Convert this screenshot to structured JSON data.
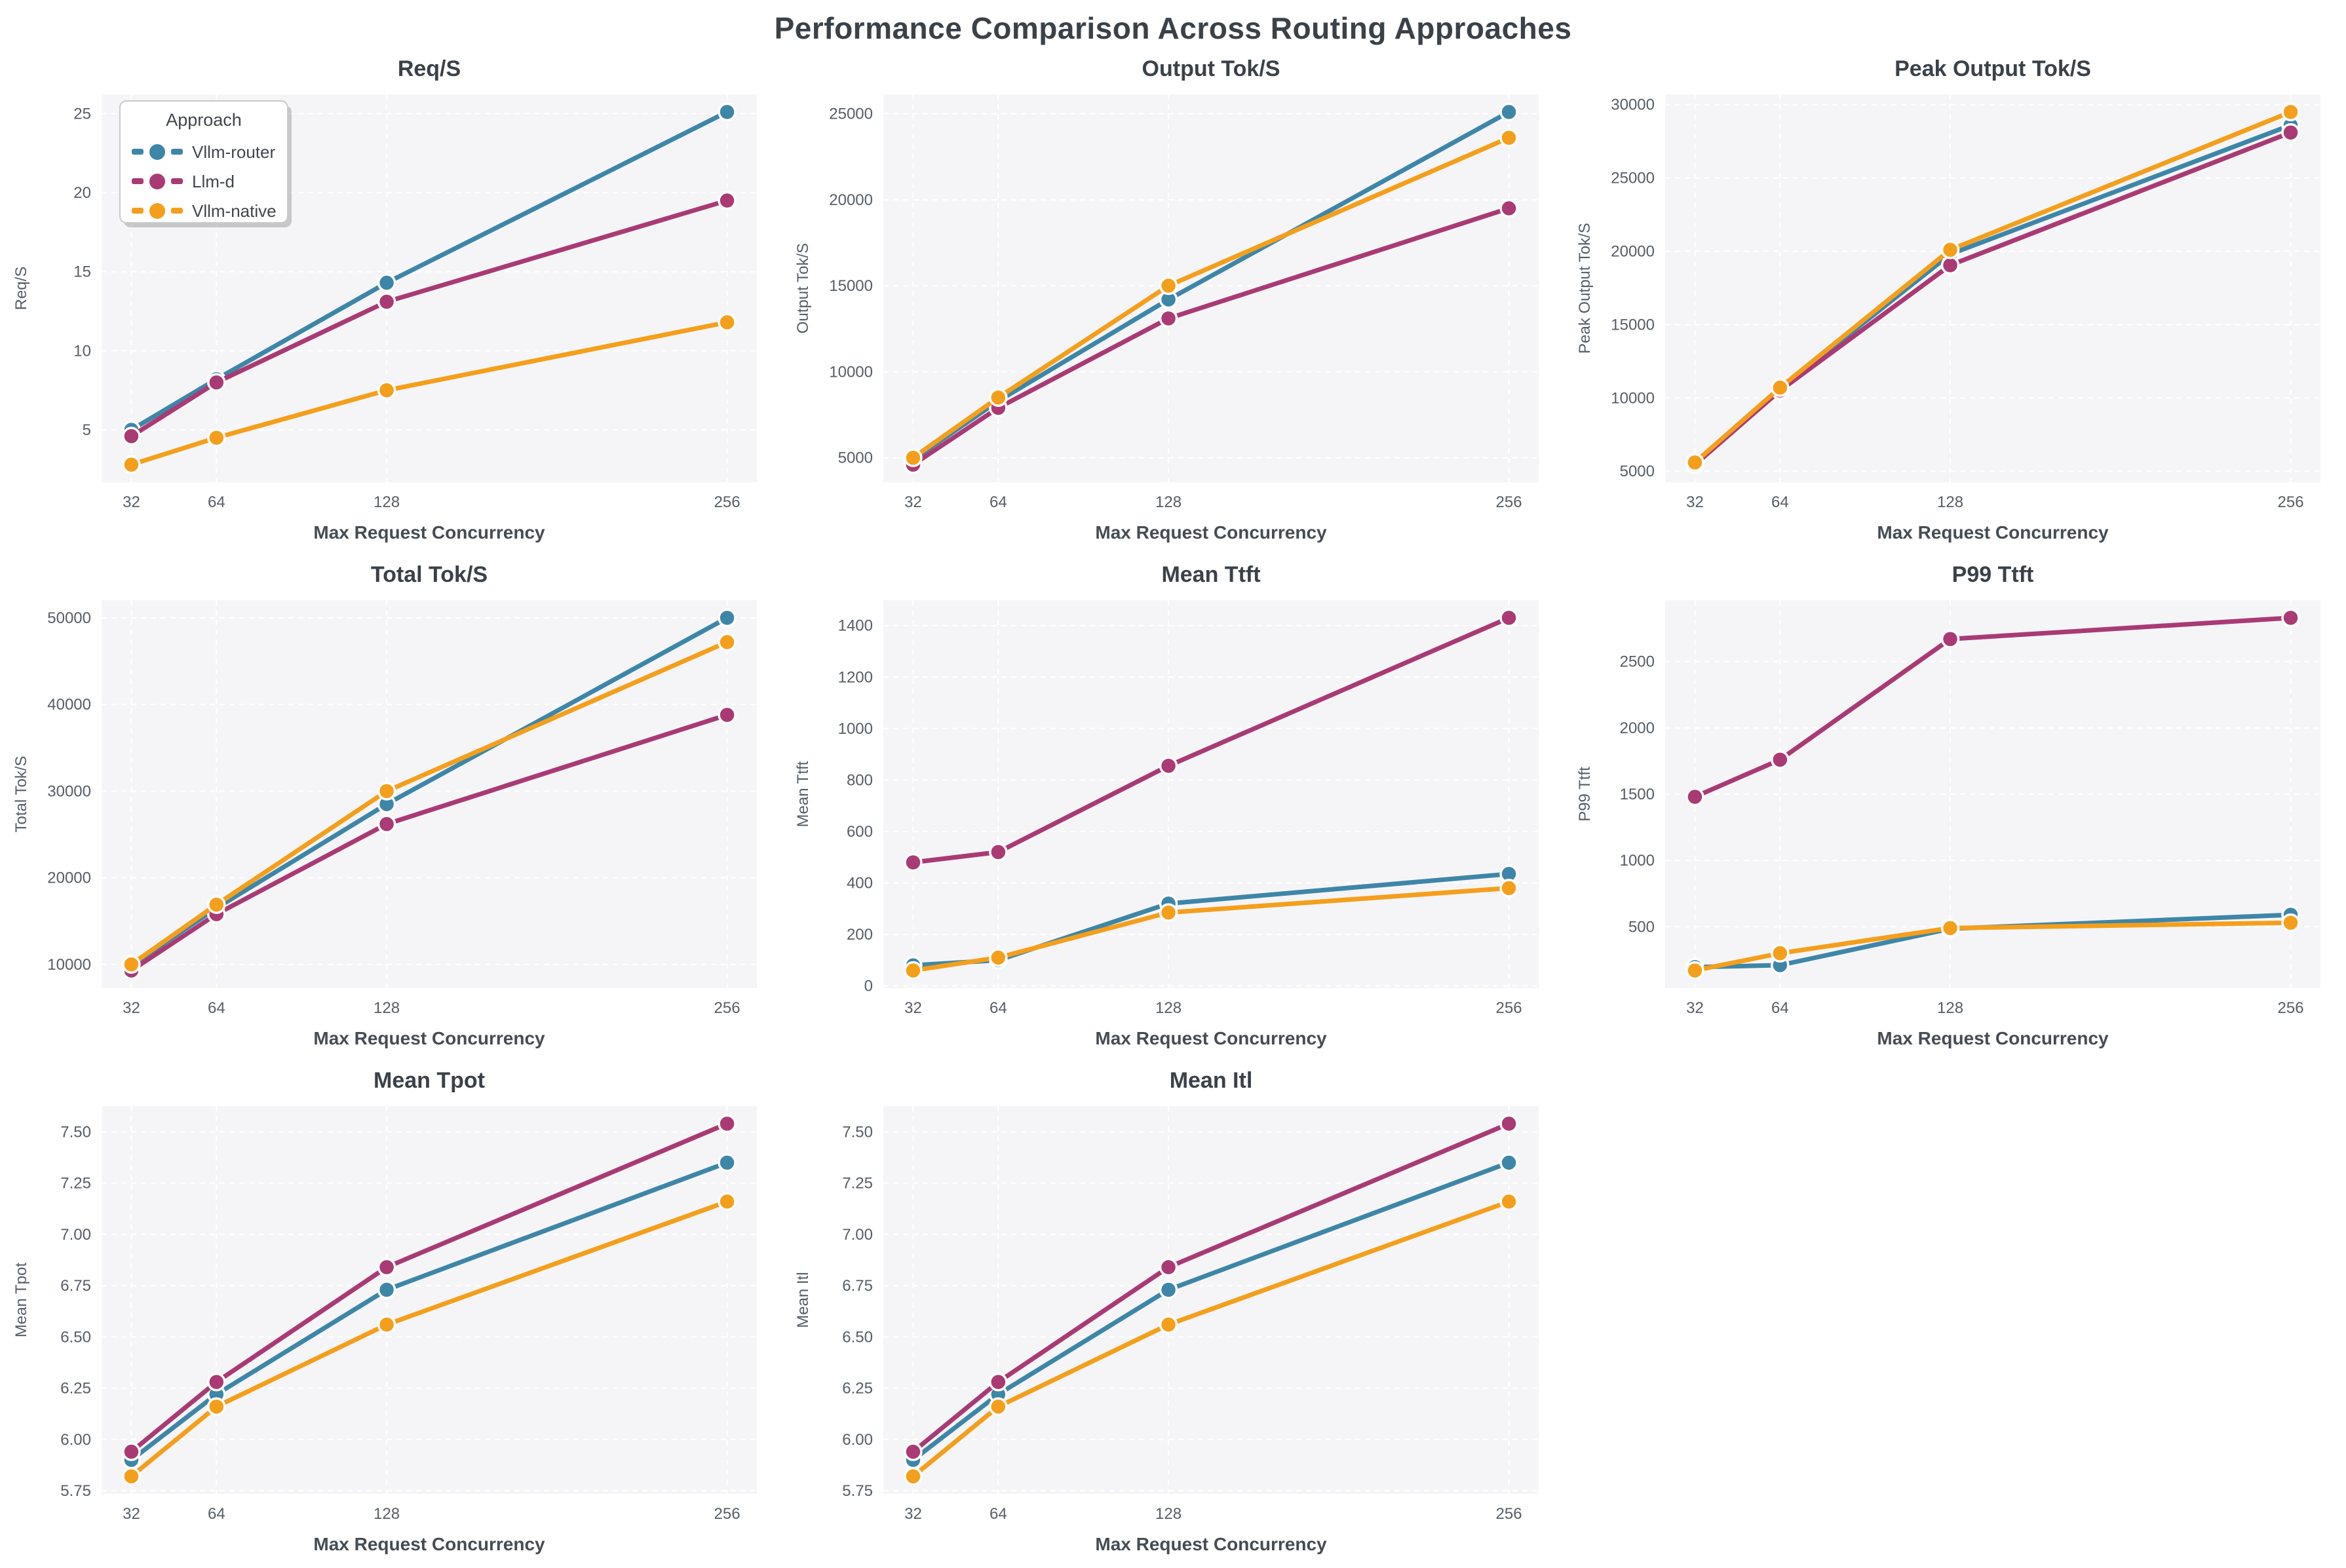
{
  "page_title": "Performance Comparison Across Routing Approaches",
  "colors": {
    "vllm_router": "#3e86a8",
    "llm_d": "#a93a74",
    "vllm_native": "#f49f1c",
    "plot_bg": "#f5f5f7",
    "grid": "#ffffff",
    "title_text": "#3a4148",
    "tick_text": "#565d66"
  },
  "legend": {
    "title": "Approach",
    "entries": [
      {
        "label": "Vllm-router",
        "color": "#3e86a8"
      },
      {
        "label": "Llm-d",
        "color": "#a93a74"
      },
      {
        "label": "Vllm-native",
        "color": "#f49f1c"
      }
    ]
  },
  "x_axis": {
    "label": "Max Request Concurrency",
    "ticks": [
      "32",
      "64",
      "128",
      "256"
    ],
    "values": [
      32,
      64,
      128,
      256
    ]
  },
  "chart_data": [
    {
      "type": "line",
      "id": "req-s",
      "title": "Req/S",
      "ylabel": "Req/S",
      "xlabel": "Max Request Concurrency",
      "x": [
        32,
        64,
        128,
        256
      ],
      "yticks": [
        "5",
        "10",
        "15",
        "20",
        "25"
      ],
      "legend_position": "upper-left",
      "series": [
        {
          "name": "Vllm-router",
          "color": "#3e86a8",
          "values": [
            5.0,
            8.2,
            14.3,
            25.1
          ]
        },
        {
          "name": "Llm-d",
          "color": "#a93a74",
          "values": [
            4.6,
            8.0,
            13.1,
            19.5
          ]
        },
        {
          "name": "Vllm-native",
          "color": "#f49f1c",
          "values": [
            2.8,
            4.5,
            7.5,
            11.8
          ]
        }
      ]
    },
    {
      "type": "line",
      "id": "output-tok-s",
      "title": "Output Tok/S",
      "ylabel": "Output Tok/S",
      "xlabel": "Max Request Concurrency",
      "x": [
        32,
        64,
        128,
        256
      ],
      "yticks": [
        "5000",
        "10000",
        "15000",
        "20000",
        "25000"
      ],
      "series": [
        {
          "name": "Vllm-router",
          "color": "#3e86a8",
          "values": [
            4900,
            8300,
            14200,
            25100
          ]
        },
        {
          "name": "Llm-d",
          "color": "#a93a74",
          "values": [
            4600,
            7900,
            13100,
            19500
          ]
        },
        {
          "name": "Vllm-native",
          "color": "#f49f1c",
          "values": [
            5000,
            8500,
            15000,
            23600
          ]
        }
      ]
    },
    {
      "type": "line",
      "id": "peak-output-tok-s",
      "title": "Peak Output Tok/S",
      "ylabel": "Peak Output Tok/S",
      "xlabel": "Max Request Concurrency",
      "x": [
        32,
        64,
        128,
        256
      ],
      "yticks": [
        "5000",
        "10000",
        "15000",
        "20000",
        "25000",
        "30000"
      ],
      "series": [
        {
          "name": "Vllm-router",
          "color": "#3e86a8",
          "values": [
            5500,
            10600,
            19800,
            28600
          ]
        },
        {
          "name": "Llm-d",
          "color": "#a93a74",
          "values": [
            5450,
            10500,
            19050,
            28100
          ]
        },
        {
          "name": "Vllm-native",
          "color": "#f49f1c",
          "values": [
            5600,
            10700,
            20100,
            29500
          ]
        }
      ]
    },
    {
      "type": "line",
      "id": "total-tok-s",
      "title": "Total Tok/S",
      "ylabel": "Total Tok/S",
      "xlabel": "Max Request Concurrency",
      "x": [
        32,
        64,
        128,
        256
      ],
      "yticks": [
        "10000",
        "20000",
        "30000",
        "40000",
        "50000"
      ],
      "series": [
        {
          "name": "Vllm-router",
          "color": "#3e86a8",
          "values": [
            9900,
            16500,
            28500,
            50000
          ]
        },
        {
          "name": "Llm-d",
          "color": "#a93a74",
          "values": [
            9300,
            15800,
            26200,
            38800
          ]
        },
        {
          "name": "Vllm-native",
          "color": "#f49f1c",
          "values": [
            10000,
            16900,
            30000,
            47200
          ]
        }
      ]
    },
    {
      "type": "line",
      "id": "mean-ttft",
      "title": "Mean Ttft",
      "ylabel": "Mean Ttft",
      "xlabel": "Max Request Concurrency",
      "x": [
        32,
        64,
        128,
        256
      ],
      "yticks": [
        "0",
        "200",
        "400",
        "600",
        "800",
        "1000",
        "1200",
        "1400"
      ],
      "series": [
        {
          "name": "Vllm-router",
          "color": "#3e86a8",
          "values": [
            80,
            100,
            320,
            435
          ]
        },
        {
          "name": "Llm-d",
          "color": "#a93a74",
          "values": [
            480,
            520,
            855,
            1430
          ]
        },
        {
          "name": "Vllm-native",
          "color": "#f49f1c",
          "values": [
            60,
            110,
            285,
            380
          ]
        }
      ]
    },
    {
      "type": "line",
      "id": "p99-ttft",
      "title": "P99 Ttft",
      "ylabel": "P99 Ttft",
      "xlabel": "Max Request Concurrency",
      "x": [
        32,
        64,
        128,
        256
      ],
      "yticks": [
        "500",
        "1000",
        "1500",
        "2000",
        "2500"
      ],
      "series": [
        {
          "name": "Vllm-router",
          "color": "#3e86a8",
          "values": [
            195,
            210,
            485,
            590
          ]
        },
        {
          "name": "Llm-d",
          "color": "#a93a74",
          "values": [
            1480,
            1760,
            2670,
            2830
          ]
        },
        {
          "name": "Vllm-native",
          "color": "#f49f1c",
          "values": [
            170,
            300,
            490,
            530
          ]
        }
      ]
    },
    {
      "type": "line",
      "id": "mean-tpot",
      "title": "Mean Tpot",
      "ylabel": "Mean Tpot",
      "xlabel": "Max Request Concurrency",
      "x": [
        32,
        64,
        128,
        256
      ],
      "yticks": [
        "5.75",
        "6.00",
        "6.25",
        "6.50",
        "6.75",
        "7.00",
        "7.25",
        "7.50"
      ],
      "series": [
        {
          "name": "Vllm-router",
          "color": "#3e86a8",
          "values": [
            5.9,
            6.22,
            6.73,
            7.35
          ]
        },
        {
          "name": "Llm-d",
          "color": "#a93a74",
          "values": [
            5.94,
            6.28,
            6.84,
            7.54
          ]
        },
        {
          "name": "Vllm-native",
          "color": "#f49f1c",
          "values": [
            5.82,
            6.16,
            6.56,
            7.16
          ]
        }
      ]
    },
    {
      "type": "line",
      "id": "mean-itl",
      "title": "Mean Itl",
      "ylabel": "Mean Itl",
      "xlabel": "Max Request Concurrency",
      "x": [
        32,
        64,
        128,
        256
      ],
      "yticks": [
        "5.75",
        "6.00",
        "6.25",
        "6.50",
        "6.75",
        "7.00",
        "7.25",
        "7.50"
      ],
      "series": [
        {
          "name": "Vllm-router",
          "color": "#3e86a8",
          "values": [
            5.9,
            6.22,
            6.73,
            7.35
          ]
        },
        {
          "name": "Llm-d",
          "color": "#a93a74",
          "values": [
            5.94,
            6.28,
            6.84,
            7.54
          ]
        },
        {
          "name": "Vllm-native",
          "color": "#f49f1c",
          "values": [
            5.82,
            6.16,
            6.56,
            7.16
          ]
        }
      ]
    }
  ]
}
